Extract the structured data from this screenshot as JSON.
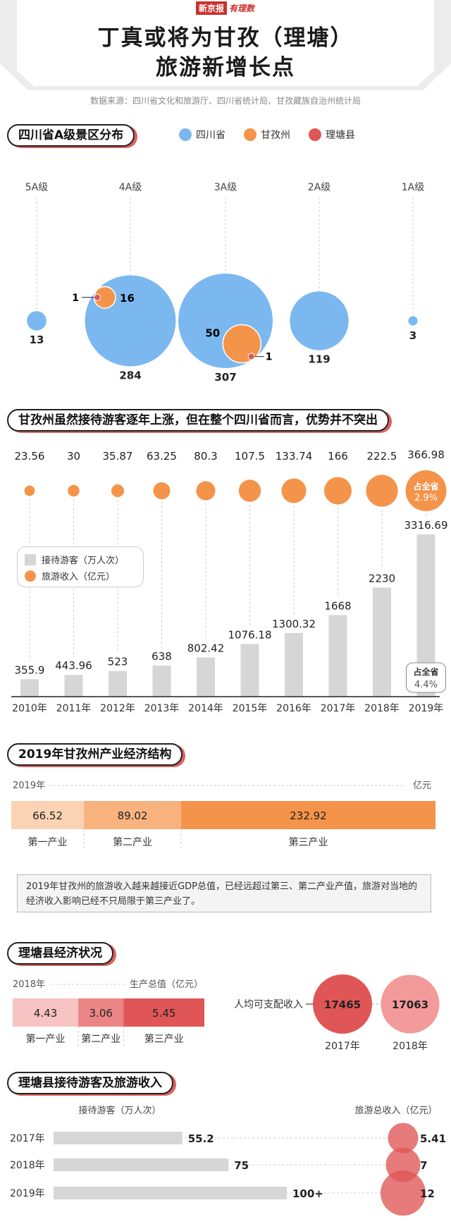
{
  "header": {
    "masthead_a": "新京报",
    "masthead_b": "有理数",
    "title_line1": "丁真或将为甘孜（理塘）",
    "title_line2": "旅游新增长点",
    "source": "数据来源：四川省文化和旅游厅、四川省统计局、甘孜藏族自治州统计局"
  },
  "section1": {
    "title": "四川省A级景区分布",
    "legend": [
      {
        "label": "四川省",
        "color": "#7bb8f0"
      },
      {
        "label": "甘孜州",
        "color": "#f4944a"
      },
      {
        "label": "理塘县",
        "color": "#e05555"
      }
    ]
  },
  "section2": {
    "title": "甘孜州虽然接待游客逐年上涨，但在整个四川省而言，优势并不突出",
    "legend_visitors": "接待游客（万人次）",
    "legend_income": "旅游收入（亿元）",
    "share_income_label": "占全省",
    "share_income_value": "2.9%",
    "share_visitors_label": "占全省",
    "share_visitors_value": "4.4%"
  },
  "section3": {
    "title": "2019年甘孜州产业经济结构",
    "year": "2019年",
    "unit": "亿元",
    "note": "2019年甘孜州的旅游收入越来越接近GDP总值，已经远超过第三、第二产业产值，旅游对当地的经济收入影响已经不只局限于第三产业了。"
  },
  "section4": {
    "title": "理塘县经济状况",
    "year": "2018年",
    "unit": "生产总值（亿元）",
    "income_label": "人均可支配收入"
  },
  "section5": {
    "title": "理塘县接待游客及旅游收入",
    "visitors_label": "接待游客（万人次）",
    "income_label": "旅游总收入（亿元）"
  },
  "chart_data": [
    {
      "type": "bubble",
      "title": "四川省A级景区分布",
      "categories": [
        "5A级",
        "4A级",
        "3A级",
        "2A级",
        "1A级"
      ],
      "series": [
        {
          "name": "四川省",
          "values": [
            13,
            284,
            307,
            119,
            3
          ]
        },
        {
          "name": "甘孜州",
          "values": [
            null,
            16,
            50,
            null,
            null
          ]
        },
        {
          "name": "理塘县",
          "values": [
            null,
            1,
            1,
            null,
            null
          ]
        }
      ]
    },
    {
      "type": "bar",
      "title": "甘孜州虽然接待游客逐年上涨，但在整个四川省而言，优势并不突出",
      "categories": [
        "2010年",
        "2011年",
        "2012年",
        "2013年",
        "2014年",
        "2015年",
        "2016年",
        "2017年",
        "2018年",
        "2019年"
      ],
      "series": [
        {
          "name": "接待游客（万人次）",
          "values": [
            355.9,
            443.96,
            523,
            638,
            802.42,
            1076.18,
            1300.32,
            1668,
            2230,
            3316.69
          ],
          "labels": [
            "355.9",
            "443.96",
            "523",
            "638",
            "802.42",
            "1076.18",
            "1300.32",
            "1668",
            "2230",
            "3316.69"
          ]
        },
        {
          "name": "旅游收入（亿元）",
          "values": [
            23.56,
            30,
            35.87,
            63.25,
            80.3,
            107.5,
            133.74,
            166,
            222.5,
            366.98
          ],
          "labels": [
            "23.56",
            "30",
            "35.87",
            "63.25",
            "80.3",
            "107.5",
            "133.74",
            "166",
            "222.5",
            "366.98"
          ]
        }
      ]
    },
    {
      "type": "bar",
      "stacked": true,
      "title": "2019年甘孜州产业经济结构",
      "categories": [
        "第一产业",
        "第二产业",
        "第三产业"
      ],
      "values": [
        66.52,
        89.02,
        232.92
      ],
      "labels": [
        "66.52",
        "89.02",
        "232.92"
      ],
      "colors": [
        "#fbd3b4",
        "#f8b27e",
        "#f4944a"
      ]
    },
    {
      "type": "bar",
      "stacked": true,
      "title": "理塘县经济状况",
      "categories": [
        "第一产业",
        "第二产业",
        "第三产业"
      ],
      "values": [
        4.43,
        3.06,
        5.45
      ],
      "labels": [
        "4.43",
        "3.06",
        "5.45"
      ],
      "colors": [
        "#f7c3c3",
        "#ec8585",
        "#e05555"
      ]
    },
    {
      "type": "bubble",
      "title": "人均可支配收入",
      "categories": [
        "2017年",
        "2018年"
      ],
      "values": [
        17465,
        17063
      ],
      "labels": [
        "17465",
        "17063"
      ],
      "colors": [
        "#e05555",
        "#f39a9a"
      ]
    },
    {
      "type": "bar",
      "orientation": "horizontal",
      "title": "理塘县接待游客及旅游收入",
      "categories": [
        "2017年",
        "2018年",
        "2019年"
      ],
      "series": [
        {
          "name": "接待游客（万人次）",
          "values": [
            55.2,
            75,
            100
          ],
          "labels": [
            "55.2",
            "75",
            "100+"
          ]
        },
        {
          "name": "旅游总收入（亿元）",
          "values": [
            5.41,
            7,
            12
          ],
          "labels": [
            "5.41",
            "7",
            "12"
          ]
        }
      ]
    }
  ]
}
